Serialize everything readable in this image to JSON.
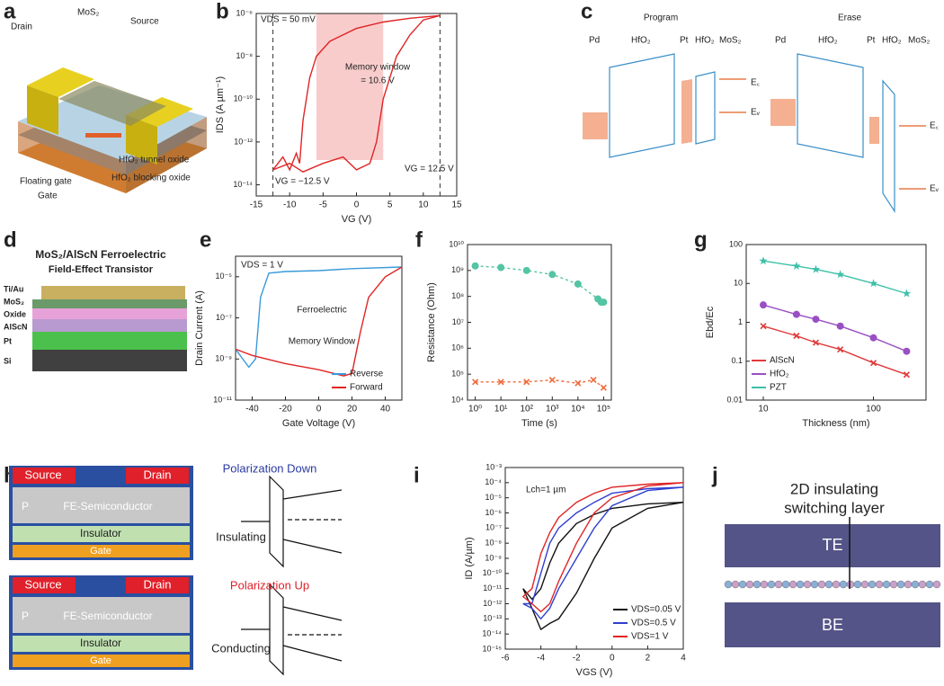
{
  "figure": {
    "panel_labels": [
      "a",
      "b",
      "c",
      "d",
      "e",
      "f",
      "g",
      "h",
      "i",
      "j"
    ],
    "a": {
      "labels": [
        "MoS₂",
        "Source",
        "Drain",
        "HfO₂ tunnel oxide",
        "HfO₂ blocking oxide",
        "Floating gate",
        "Gate"
      ]
    },
    "c": {
      "titles": [
        "Program",
        "Erase"
      ],
      "layers": [
        "Pd",
        "HfO₂",
        "Pt",
        "HfO₂",
        "MoS₂"
      ],
      "levels": [
        "E꜀",
        "Eᵥ"
      ]
    },
    "d": {
      "title": [
        "MoS₂/AlScN Ferroelectric",
        "Field-Effect Transistor"
      ],
      "layers": [
        "Ti/Au",
        "MoS₂",
        "Oxide",
        "AlScN",
        "Pt",
        "Si"
      ]
    },
    "h": {
      "device": [
        "Source",
        "Drain",
        "P",
        "FE-Semiconductor",
        "Insulator",
        "Gate"
      ],
      "states": [
        "Polarization Down",
        "Insulating",
        "Polarization Up",
        "Conducting"
      ]
    },
    "j": {
      "label": [
        "2D insulating",
        "switching layer"
      ],
      "electrodes": [
        "TE",
        "BE"
      ]
    }
  },
  "chart_data": [
    {
      "type": "line",
      "xlabel": "VG (V)",
      "ylabel": "IDS (A µm⁻¹)",
      "logy": true,
      "xlim": [
        -15,
        15
      ],
      "xticks": [
        -15,
        -10,
        -5,
        0,
        5,
        10,
        15
      ],
      "ylim": [
        3e-15,
        1e-06
      ],
      "yticks": [
        {
          "value": 1e-14,
          "label": "10⁻¹⁴"
        },
        {
          "value": 1e-12,
          "label": "10⁻¹²"
        },
        {
          "value": 1e-10,
          "label": "10⁻¹⁰"
        },
        {
          "value": 1e-08,
          "label": "10⁻⁸"
        },
        {
          "value": 1e-06,
          "label": "10⁻⁶"
        }
      ],
      "annotations": [
        "VDS = 50 mV",
        "Memory window",
        "= 10.6 V",
        "VG = −12.5 V",
        "VG = 12.5 V"
      ],
      "shade_x": [
        -6,
        4
      ],
      "vlines": [
        -12.5,
        12.5
      ],
      "series": [
        {
          "color": "#e02424",
          "x": [
            -12.5,
            -11,
            -10,
            -9,
            -8.5,
            -8,
            -7,
            -6,
            -4,
            -2,
            0,
            4,
            8,
            12.5
          ],
          "values": [
            5e-14,
            2e-13,
            5e-14,
            3e-13,
            1e-13,
            1e-11,
            1e-09,
            1e-08,
            5e-08,
            1e-07,
            2e-07,
            4e-07,
            6e-07,
            8e-07
          ]
        },
        {
          "color": "#e02424",
          "x": [
            12.5,
            10,
            8,
            6,
            4,
            3,
            2,
            0,
            -2,
            -5,
            -8,
            -10,
            -12.5
          ],
          "values": [
            8e-07,
            5e-07,
            1e-07,
            1e-08,
            1e-10,
            1e-12,
            1e-13,
            5e-14,
            2e-13,
            1e-13,
            4e-14,
            1e-13,
            5e-14
          ]
        }
      ]
    },
    {
      "type": "line",
      "xlabel": "Gate Voltage (V)",
      "ylabel": "Drain Current (A)",
      "logy": true,
      "legend": "lower right",
      "xlim": [
        -50,
        50
      ],
      "xticks": [
        -40,
        -20,
        0,
        20,
        40
      ],
      "ylim": [
        1e-11,
        0.0001
      ],
      "yticks": [
        {
          "value": 1e-11,
          "label": "10⁻¹¹"
        },
        {
          "value": 1e-09,
          "label": "10⁻⁹"
        },
        {
          "value": 1e-07,
          "label": "10⁻⁷"
        },
        {
          "value": 1e-05,
          "label": "10⁻⁵"
        }
      ],
      "annotations": [
        "VDS = 1 V",
        "Ferroelectric",
        "Memory Window"
      ],
      "series": [
        {
          "name": "Reverse",
          "color": "#3a9ad9",
          "x": [
            50,
            20,
            0,
            -20,
            -30,
            -35,
            -38,
            -42,
            -50
          ],
          "values": [
            3e-05,
            2.5e-05,
            2e-05,
            1.8e-05,
            1.5e-05,
            1e-06,
            1e-09,
            4e-10,
            3e-09
          ]
        },
        {
          "name": "Forward",
          "color": "#e02424",
          "x": [
            -50,
            -40,
            -20,
            0,
            15,
            20,
            25,
            30,
            40,
            50
          ],
          "values": [
            3e-09,
            1.5e-09,
            6e-10,
            3e-10,
            1.5e-10,
            2e-10,
            2e-08,
            1e-06,
            1e-05,
            3e-05
          ]
        }
      ]
    },
    {
      "type": "line",
      "xlabel": "Time (s)",
      "ylabel": "Resistance (Ohm)",
      "logx": true,
      "logy": true,
      "xlim": [
        0.5,
        200000
      ],
      "xticks": [
        {
          "value": 1,
          "label": "10⁰"
        },
        {
          "value": 10,
          "label": "10¹"
        },
        {
          "value": 100,
          "label": "10²"
        },
        {
          "value": 1000,
          "label": "10³"
        },
        {
          "value": 10000,
          "label": "10⁴"
        },
        {
          "value": 100000,
          "label": "10⁵"
        }
      ],
      "ylim": [
        10000,
        10000000000
      ],
      "yticks": [
        {
          "value": 10000,
          "label": "10⁴"
        },
        {
          "value": 100000,
          "label": "10⁵"
        },
        {
          "value": 1000000,
          "label": "10⁶"
        },
        {
          "value": 10000000,
          "label": "10⁷"
        },
        {
          "value": 100000000,
          "label": "10⁸"
        },
        {
          "value": 1000000000,
          "label": "10⁹"
        },
        {
          "value": 10000000000,
          "label": "10¹⁰"
        }
      ],
      "series": [
        {
          "color": "#55c4a4",
          "marker": "circle",
          "dash": true,
          "x": [
            1,
            10,
            100,
            1000,
            10000,
            60000,
            80000,
            100000
          ],
          "values": [
            1500000000,
            1300000000,
            1000000000,
            700000000,
            300000000,
            80000000,
            60000000,
            60000000
          ]
        },
        {
          "color": "#f06a3a",
          "marker": "cross",
          "dash": true,
          "x": [
            1,
            10,
            100,
            1000,
            10000,
            40000,
            100000
          ],
          "values": [
            50000,
            50000,
            50000,
            60000,
            45000,
            60000,
            30000
          ]
        }
      ]
    },
    {
      "type": "line",
      "xlabel": "Thickness (nm)",
      "ylabel": "Ebd/Ec",
      "logx": true,
      "logy": true,
      "legend": "lower left",
      "xlim": [
        7,
        300
      ],
      "xticks": [
        10,
        100
      ],
      "ylim": [
        0.01,
        100
      ],
      "yticks": [
        0.01,
        0.1,
        1,
        10,
        100
      ],
      "series": [
        {
          "name": "AlScN",
          "color": "#e03a3a",
          "marker": "cross",
          "x": [
            10,
            20,
            30,
            50,
            100,
            200
          ],
          "values": [
            0.8,
            0.45,
            0.3,
            0.2,
            0.09,
            0.045
          ]
        },
        {
          "name": "HfO₂",
          "color": "#9a4fc4",
          "marker": "circle",
          "x": [
            10,
            20,
            30,
            50,
            100,
            200
          ],
          "values": [
            2.8,
            1.6,
            1.2,
            0.8,
            0.4,
            0.18
          ]
        },
        {
          "name": "PZT",
          "color": "#3ec0a8",
          "marker": "star",
          "x": [
            10,
            20,
            30,
            50,
            100,
            200
          ],
          "values": [
            38,
            28,
            23,
            17,
            10,
            5.5
          ]
        }
      ]
    },
    {
      "type": "line",
      "xlabel": "VGS (V)",
      "ylabel": "ID (A/µm)",
      "logy": true,
      "legend": "lower right",
      "xlim": [
        -6,
        4
      ],
      "xticks": [
        -6,
        -4,
        -2,
        0,
        2,
        4
      ],
      "ylim": [
        1e-15,
        0.001
      ],
      "yticks": [
        {
          "value": 1e-15,
          "label": "10⁻¹⁵"
        },
        {
          "value": 1e-14,
          "label": "10⁻¹⁴"
        },
        {
          "value": 1e-13,
          "label": "10⁻¹³"
        },
        {
          "value": 1e-12,
          "label": "10⁻¹²"
        },
        {
          "value": 1e-11,
          "label": "10⁻¹¹"
        },
        {
          "value": 1e-10,
          "label": "10⁻¹⁰"
        },
        {
          "value": 1e-09,
          "label": "10⁻⁹"
        },
        {
          "value": 1e-08,
          "label": "10⁻⁸"
        },
        {
          "value": 1e-07,
          "label": "10⁻⁷"
        },
        {
          "value": 1e-06,
          "label": "10⁻⁶"
        },
        {
          "value": 1e-05,
          "label": "10⁻⁵"
        },
        {
          "value": 0.0001,
          "label": "10⁻⁴"
        },
        {
          "value": 0.001,
          "label": "10⁻³"
        }
      ],
      "annotations": [
        "Lch=1 µm"
      ],
      "series": [
        {
          "name": "VDS=0.05 V",
          "color": "#111111",
          "x": [
            4,
            2,
            0,
            -1,
            -2,
            -3,
            -3.5,
            -4,
            -4.5,
            -5,
            -4.5,
            -4,
            -3.5,
            -3,
            -2,
            -1,
            0,
            2,
            4
          ],
          "values": [
            5e-06,
            4e-06,
            2e-06,
            8e-07,
            2e-07,
            1e-08,
            5e-10,
            1e-11,
            2e-12,
            1e-11,
            5e-13,
            2e-14,
            5e-14,
            1e-13,
            5e-12,
            1e-09,
            1e-07,
            2e-06,
            5e-06
          ]
        },
        {
          "name": "VDS=0.5 V",
          "color": "#3040d0",
          "x": [
            4,
            2,
            0,
            -1,
            -2,
            -3,
            -3.5,
            -4,
            -4.5,
            -5,
            -4.5,
            -4,
            -3.5,
            -3,
            -2,
            -1,
            0,
            2,
            4
          ],
          "values": [
            5e-05,
            4e-05,
            2e-05,
            5e-06,
            1e-06,
            1e-07,
            1e-08,
            1e-10,
            1e-12,
            1e-12,
            5e-13,
            1e-13,
            5e-13,
            1e-11,
            1e-09,
            1e-07,
            3e-06,
            3e-05,
            5e-05
          ]
        },
        {
          "name": "VDS=1 V",
          "color": "#e02424",
          "x": [
            4,
            2,
            0,
            -1,
            -2,
            -3,
            -3.5,
            -4,
            -4.5,
            -5,
            -4.5,
            -4,
            -3.5,
            -3,
            -2,
            -1,
            0,
            2,
            4
          ],
          "values": [
            0.0001,
            8e-05,
            5e-05,
            2e-05,
            5e-06,
            5e-07,
            5e-08,
            2e-09,
            1e-11,
            3e-12,
            1e-12,
            3e-13,
            1e-12,
            3e-11,
            1e-08,
            1e-06,
            1e-05,
            6e-05,
            0.0001
          ]
        }
      ]
    }
  ]
}
